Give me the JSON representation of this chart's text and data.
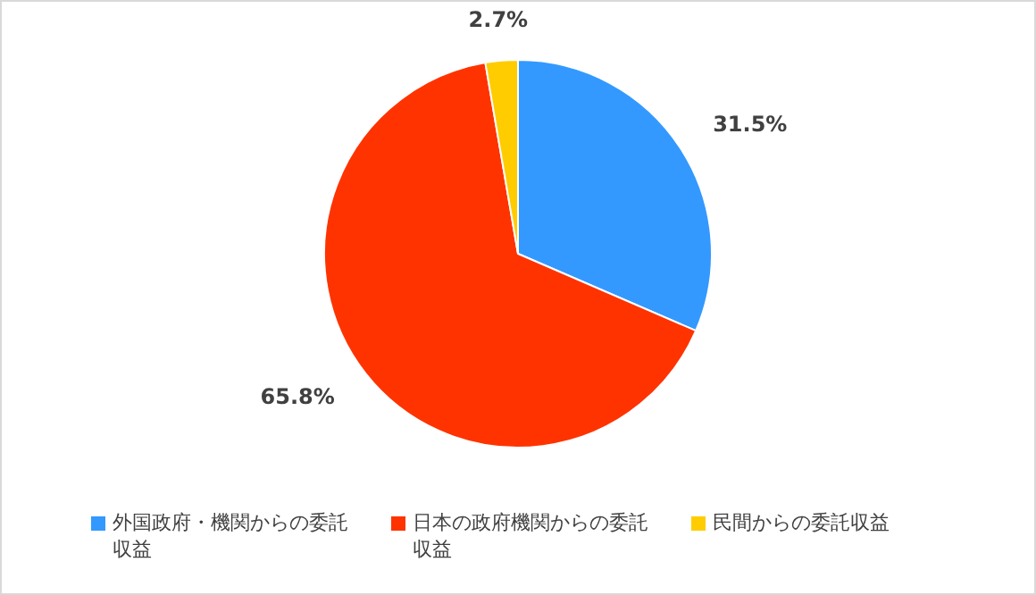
{
  "chart_data": {
    "type": "pie",
    "categories": [
      "外国政府・機関からの委託収益",
      "日本の政府機関からの委託収益",
      "民間からの委託収益"
    ],
    "values": [
      31.5,
      65.8,
      2.7
    ],
    "colors": [
      "#3399ff",
      "#ff3300",
      "#ffcc00"
    ],
    "value_labels": [
      "31.5%",
      "65.8%",
      "2.7%"
    ],
    "legend": "bottom"
  }
}
